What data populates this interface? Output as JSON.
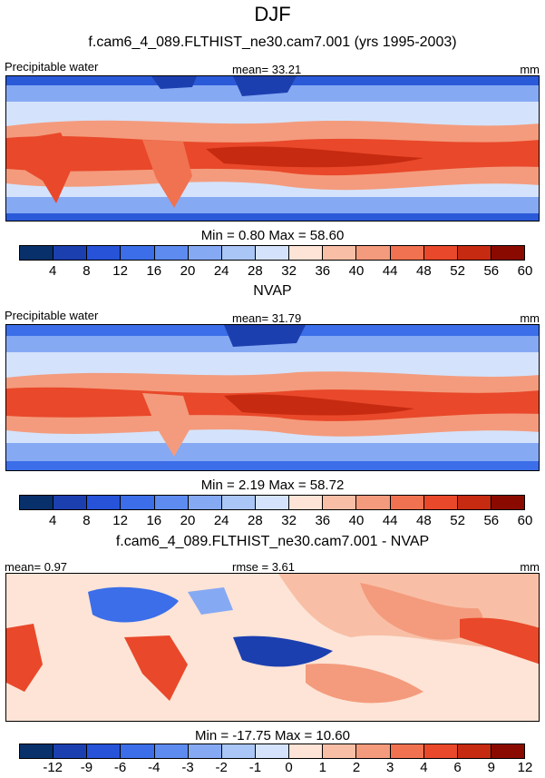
{
  "page_title": "DJF",
  "chart_data": [
    {
      "type": "heatmap",
      "title": "f.cam6_4_089.FLTHIST_ne30.cam7.001 (yrs 1995-2003)",
      "left_label": "Precipitable water",
      "center_label": "mean=  33.21",
      "right_label": "mm",
      "minmax": "Min =   0.80 Max =  58.60",
      "mean": 33.21,
      "min": 0.8,
      "max": 58.6,
      "colorbar_ticks": [
        "4",
        "8",
        "12",
        "16",
        "20",
        "24",
        "28",
        "32",
        "36",
        "40",
        "44",
        "48",
        "52",
        "56",
        "60"
      ]
    },
    {
      "type": "heatmap",
      "title": "NVAP",
      "left_label": "Precipitable water",
      "center_label": "mean=  31.79",
      "right_label": "mm",
      "minmax": "Min =   2.19 Max =  58.72",
      "mean": 31.79,
      "min": 2.19,
      "max": 58.72,
      "colorbar_ticks": [
        "4",
        "8",
        "12",
        "16",
        "20",
        "24",
        "28",
        "32",
        "36",
        "40",
        "44",
        "48",
        "52",
        "56",
        "60"
      ]
    },
    {
      "type": "heatmap",
      "title": "f.cam6_4_089.FLTHIST_ne30.cam7.001 - NVAP",
      "left_label": "mean=   0.97",
      "center_label": "rmse =   3.61",
      "right_label": "mm",
      "minmax": "Min = -17.75 Max =  10.60",
      "mean": 0.97,
      "rmse": 3.61,
      "min": -17.75,
      "max": 10.6,
      "colorbar_ticks": [
        "-12",
        "-9",
        "-6",
        "-4",
        "-3",
        "-2",
        "-1",
        "0",
        "1",
        "2",
        "3",
        "4",
        "6",
        "9",
        "12"
      ]
    }
  ],
  "colors": [
    "#08306b",
    "#1c3fb0",
    "#2753d8",
    "#3b6ee8",
    "#5d8bf0",
    "#86a9f4",
    "#aac6f7",
    "#d4e3fb",
    "#fde4d6",
    "#f8bfa6",
    "#f49b7d",
    "#f07250",
    "#e9482a",
    "#c62a10",
    "#8b0a00"
  ]
}
